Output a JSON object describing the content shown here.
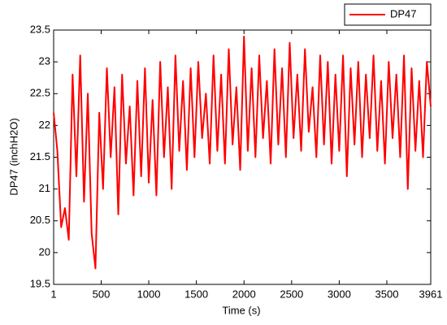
{
  "chart_data": {
    "type": "line",
    "xlabel": "Time (s)",
    "ylabel": "DP47 (inchH2O)",
    "xlim": [
      1,
      3961
    ],
    "xticks": [
      1,
      500,
      1000,
      1500,
      2000,
      2500,
      3000,
      3500,
      3961
    ],
    "ylim": [
      19.5,
      23.5
    ],
    "yticks": [
      19.5,
      20,
      20.5,
      21,
      21.5,
      22,
      22.5,
      23,
      23.5
    ],
    "grid": false,
    "legend": "top-right",
    "x": [
      1,
      40,
      80,
      120,
      160,
      200,
      240,
      280,
      320,
      360,
      400,
      440,
      480,
      520,
      560,
      600,
      640,
      680,
      720,
      760,
      800,
      840,
      880,
      920,
      960,
      1000,
      1040,
      1080,
      1120,
      1160,
      1200,
      1240,
      1280,
      1320,
      1360,
      1400,
      1440,
      1480,
      1520,
      1560,
      1600,
      1640,
      1680,
      1720,
      1760,
      1800,
      1840,
      1880,
      1920,
      1960,
      2000,
      2040,
      2080,
      2120,
      2160,
      2200,
      2240,
      2280,
      2320,
      2360,
      2400,
      2440,
      2480,
      2520,
      2560,
      2600,
      2640,
      2680,
      2720,
      2760,
      2800,
      2840,
      2880,
      2920,
      2960,
      3000,
      3040,
      3080,
      3120,
      3160,
      3200,
      3240,
      3280,
      3320,
      3360,
      3400,
      3440,
      3480,
      3520,
      3560,
      3600,
      3640,
      3680,
      3720,
      3760,
      3800,
      3840,
      3880,
      3920,
      3961
    ],
    "series": [
      {
        "name": "DP47",
        "color": "#ff0000",
        "values": [
          22.2,
          21.6,
          20.4,
          20.7,
          20.2,
          22.8,
          21.2,
          23.1,
          20.8,
          22.5,
          20.3,
          19.75,
          22.2,
          21.0,
          22.9,
          21.5,
          22.6,
          20.6,
          22.8,
          21.4,
          22.3,
          20.9,
          22.7,
          21.2,
          22.9,
          21.1,
          22.4,
          20.9,
          23.0,
          21.5,
          22.6,
          21.0,
          23.1,
          21.6,
          22.7,
          21.3,
          22.9,
          21.5,
          23.0,
          21.8,
          22.5,
          21.4,
          23.1,
          21.6,
          22.8,
          21.4,
          23.2,
          21.7,
          22.6,
          21.3,
          23.4,
          21.6,
          22.9,
          21.5,
          23.1,
          21.8,
          22.7,
          21.4,
          23.2,
          21.7,
          22.9,
          21.5,
          23.3,
          21.8,
          22.8,
          21.6,
          23.2,
          21.9,
          22.6,
          21.5,
          23.1,
          21.7,
          23.0,
          21.4,
          22.8,
          21.6,
          23.1,
          21.2,
          22.9,
          21.7,
          23.0,
          21.5,
          22.8,
          21.8,
          23.1,
          21.6,
          22.7,
          21.4,
          23.0,
          21.8,
          22.8,
          21.5,
          23.1,
          21.0,
          22.9,
          21.6,
          22.7,
          21.5,
          23.0,
          22.3
        ]
      }
    ]
  }
}
